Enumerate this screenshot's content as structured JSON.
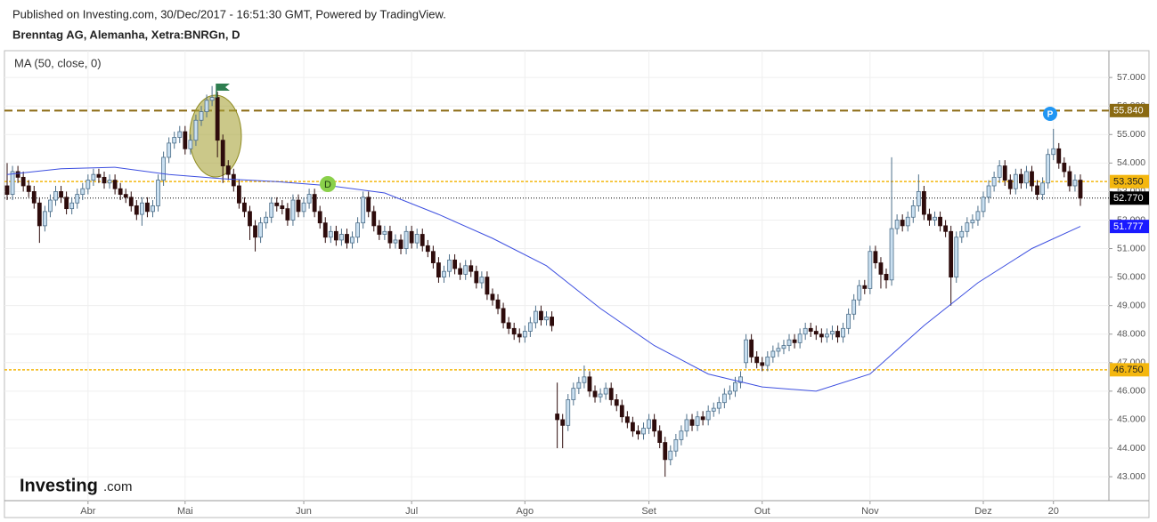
{
  "chart_data": {
    "type": "candlestick",
    "header": "Published on Investing.com, 30/Dec/2017 - 16:51:30 GMT, Powered by TradingView.",
    "title": "Brenntag AG, Alemanha, Xetra:BNRGn, D",
    "up_color": "#c9dff0",
    "down_color": "#2e0c0c",
    "grid": true,
    "ylim": [
      42.16,
      57.94
    ],
    "yticks": [
      {
        "value": 43,
        "label": "43.000"
      },
      {
        "value": 44,
        "label": "44.000"
      },
      {
        "value": 45,
        "label": "45.000"
      },
      {
        "value": 46,
        "label": "46.000"
      },
      {
        "value": 47,
        "label": "47.000"
      },
      {
        "value": 48,
        "label": "48.000"
      },
      {
        "value": 49,
        "label": "49.000"
      },
      {
        "value": 50,
        "label": "50.000"
      },
      {
        "value": 51,
        "label": "51.000"
      },
      {
        "value": 52,
        "label": "52.000"
      },
      {
        "value": 53,
        "label": "53.000"
      },
      {
        "value": 54,
        "label": "54.000"
      },
      {
        "value": 55,
        "label": "55.000"
      },
      {
        "value": 56,
        "label": "56.000"
      },
      {
        "value": 57,
        "label": "57.000"
      }
    ],
    "categories": [
      null,
      null,
      null,
      null,
      null,
      null,
      null,
      null,
      null,
      null,
      null,
      null,
      null,
      null,
      null,
      "Abr",
      null,
      null,
      null,
      null,
      null,
      null,
      null,
      null,
      null,
      null,
      null,
      null,
      null,
      null,
      null,
      null,
      null,
      "Mai",
      null,
      null,
      null,
      null,
      null,
      null,
      null,
      null,
      null,
      null,
      null,
      null,
      null,
      null,
      null,
      null,
      null,
      null,
      null,
      null,
      null,
      "Jun",
      null,
      null,
      null,
      null,
      null,
      null,
      null,
      null,
      null,
      null,
      null,
      null,
      null,
      null,
      null,
      null,
      null,
      null,
      null,
      "Jul",
      null,
      null,
      null,
      null,
      null,
      null,
      null,
      null,
      null,
      null,
      null,
      null,
      null,
      null,
      null,
      null,
      null,
      null,
      null,
      null,
      "Ago",
      null,
      null,
      null,
      null,
      null,
      null,
      null,
      null,
      null,
      null,
      null,
      null,
      null,
      null,
      null,
      null,
      null,
      null,
      null,
      null,
      null,
      null,
      "Set",
      null,
      null,
      null,
      null,
      null,
      null,
      null,
      null,
      null,
      null,
      null,
      null,
      null,
      null,
      null,
      null,
      null,
      null,
      null,
      null,
      "Out",
      null,
      null,
      null,
      null,
      null,
      null,
      null,
      null,
      null,
      null,
      null,
      null,
      null,
      null,
      null,
      null,
      null,
      null,
      null,
      "Nov",
      null,
      null,
      null,
      null,
      null,
      null,
      null,
      null,
      null,
      null,
      null,
      null,
      null,
      null,
      null,
      null,
      null,
      null,
      null,
      null,
      "Dez",
      null,
      null,
      null,
      null,
      null,
      null,
      null,
      null,
      null,
      null,
      null,
      null,
      "20",
      null,
      null,
      null,
      null,
      null
    ],
    "open": [
      53.2,
      52.9,
      53.7,
      53.5,
      53.2,
      53.0,
      52.6,
      51.8,
      52.3,
      52.7,
      53.0,
      52.8,
      52.4,
      52.6,
      52.9,
      53.1,
      53.4,
      53.6,
      53.5,
      53.3,
      53.4,
      53.1,
      52.9,
      52.8,
      52.5,
      52.2,
      52.6,
      52.3,
      52.5,
      53.4,
      54.2,
      54.7,
      54.9,
      55.1,
      54.5,
      54.8,
      55.5,
      55.8,
      56.2,
      56.3,
      54.8,
      53.9,
      53.6,
      53.2,
      52.6,
      52.3,
      51.8,
      51.4,
      51.9,
      52.1,
      52.6,
      52.5,
      52.4,
      52.0,
      52.7,
      52.3,
      52.6,
      52.9,
      52.3,
      51.9,
      51.4,
      51.6,
      51.3,
      51.5,
      51.2,
      51.4,
      51.9,
      52.8,
      52.3,
      51.8,
      51.5,
      51.6,
      51.2,
      51.3,
      51.0,
      51.6,
      51.2,
      51.5,
      51.1,
      50.9,
      50.5,
      50.0,
      50.2,
      50.6,
      50.3,
      50.1,
      50.4,
      50.2,
      49.8,
      50.0,
      49.4,
      49.2,
      48.9,
      48.4,
      48.2,
      48.0,
      47.9,
      48.1,
      48.4,
      48.8,
      48.5,
      48.6,
      45.2,
      45.0,
      44.8,
      45.7,
      46.1,
      46.3,
      46.5,
      46.0,
      45.8,
      45.9,
      46.1,
      45.7,
      45.5,
      45.1,
      44.9,
      44.6,
      44.5,
      44.7,
      45.0,
      44.6,
      44.2,
      43.6,
      43.9,
      44.3,
      44.6,
      45.0,
      44.8,
      45.1,
      45.0,
      45.3,
      45.4,
      45.6,
      45.9,
      46.0,
      46.3,
      47.0,
      47.8,
      47.2,
      47.0,
      46.9,
      47.2,
      47.4,
      47.5,
      47.6,
      47.8,
      47.7,
      48.0,
      48.2,
      48.1,
      48.0,
      47.9,
      48.0,
      48.1,
      47.9,
      48.2,
      48.7,
      49.2,
      49.7,
      49.6,
      50.9,
      50.5,
      50.1,
      49.9,
      51.7,
      52.0,
      51.8,
      52.1,
      52.5,
      53.0,
      52.2,
      52.0,
      52.1,
      51.8,
      51.6,
      50.0,
      51.4,
      51.6,
      51.9,
      52.0,
      52.3,
      52.8,
      53.2,
      53.5,
      53.9,
      53.4,
      53.1,
      53.6,
      53.3,
      53.7,
      53.2,
      52.9,
      53.3,
      54.3,
      54.5,
      54.0,
      53.7,
      53.2,
      53.4
    ],
    "high": [
      54.0,
      53.9,
      53.9,
      53.7,
      53.4,
      53.2,
      52.8,
      52.5,
      52.9,
      53.2,
      53.2,
      53.0,
      52.8,
      53.1,
      53.3,
      53.6,
      53.8,
      53.8,
      53.7,
      53.6,
      53.6,
      53.3,
      53.1,
      53.0,
      52.7,
      52.8,
      52.8,
      52.7,
      53.6,
      54.4,
      54.9,
      55.1,
      55.3,
      55.3,
      55.0,
      55.7,
      56.0,
      56.4,
      56.7,
      56.5,
      55.0,
      54.1,
      53.8,
      53.4,
      52.8,
      52.5,
      52.0,
      52.1,
      52.3,
      52.8,
      52.8,
      52.7,
      52.6,
      52.9,
      52.9,
      52.8,
      53.1,
      53.1,
      52.5,
      52.1,
      51.8,
      51.8,
      51.7,
      51.7,
      51.6,
      52.1,
      53.0,
      53.0,
      52.5,
      52.0,
      51.8,
      51.8,
      51.5,
      51.5,
      51.8,
      51.8,
      51.7,
      51.7,
      51.3,
      51.1,
      50.7,
      50.4,
      50.8,
      50.8,
      50.5,
      50.6,
      50.6,
      50.4,
      50.2,
      50.2,
      49.6,
      49.4,
      49.1,
      48.6,
      48.4,
      48.2,
      48.3,
      48.6,
      49.0,
      49.0,
      48.8,
      48.8,
      46.3,
      45.2,
      45.9,
      46.3,
      46.5,
      46.9,
      46.7,
      46.2,
      46.1,
      46.3,
      46.3,
      45.9,
      45.7,
      45.3,
      45.1,
      44.8,
      44.9,
      45.2,
      45.2,
      44.8,
      44.4,
      44.1,
      44.5,
      44.8,
      45.2,
      45.2,
      45.3,
      45.3,
      45.5,
      45.6,
      45.8,
      46.1,
      46.2,
      46.5,
      46.7,
      48.0,
      48.0,
      47.4,
      47.2,
      47.4,
      47.6,
      47.7,
      47.8,
      48.0,
      48.0,
      48.2,
      48.4,
      48.4,
      48.3,
      48.2,
      48.2,
      48.3,
      48.3,
      48.4,
      48.9,
      49.4,
      49.9,
      49.9,
      51.1,
      51.1,
      50.7,
      50.3,
      54.2,
      52.2,
      52.2,
      52.3,
      52.7,
      53.6,
      53.2,
      52.4,
      52.3,
      52.3,
      52.0,
      51.8,
      51.6,
      51.8,
      52.1,
      52.2,
      52.5,
      53.0,
      53.4,
      53.7,
      54.1,
      54.1,
      53.6,
      53.8,
      53.8,
      53.9,
      53.9,
      53.4,
      53.5,
      54.5,
      55.2,
      54.7,
      54.2,
      53.9,
      53.6,
      53.6
    ],
    "low": [
      52.7,
      52.7,
      53.3,
      53.0,
      52.8,
      52.4,
      51.2,
      51.6,
      52.1,
      52.5,
      52.6,
      52.2,
      52.2,
      52.4,
      52.7,
      52.9,
      53.2,
      53.3,
      53.1,
      53.1,
      52.9,
      52.7,
      52.6,
      52.3,
      52.0,
      51.8,
      52.1,
      52.1,
      52.3,
      53.2,
      54.0,
      54.5,
      54.7,
      54.3,
      54.3,
      54.6,
      55.3,
      55.6,
      56.0,
      54.2,
      53.3,
      53.4,
      53.0,
      52.4,
      52.1,
      51.3,
      50.9,
      51.2,
      51.7,
      51.9,
      52.3,
      52.2,
      51.8,
      51.8,
      52.1,
      52.1,
      52.4,
      52.1,
      51.7,
      51.2,
      51.2,
      51.1,
      51.1,
      51.0,
      51.0,
      51.2,
      51.7,
      52.1,
      51.6,
      51.3,
      51.3,
      51.0,
      51.0,
      50.8,
      50.8,
      51.0,
      51.0,
      50.9,
      50.7,
      50.3,
      49.8,
      49.8,
      50.0,
      50.1,
      49.9,
      49.9,
      50.0,
      49.6,
      49.6,
      49.2,
      49.0,
      48.7,
      48.2,
      48.0,
      47.8,
      47.7,
      47.7,
      47.9,
      48.2,
      48.3,
      48.3,
      48.1,
      44.0,
      44.0,
      44.6,
      45.5,
      45.9,
      46.1,
      45.8,
      45.6,
      45.6,
      45.7,
      45.5,
      45.3,
      44.9,
      44.7,
      44.4,
      44.3,
      44.3,
      44.5,
      44.4,
      44.0,
      43.0,
      43.4,
      43.7,
      44.1,
      44.4,
      44.6,
      44.6,
      44.8,
      44.8,
      45.1,
      45.2,
      45.4,
      45.7,
      45.8,
      46.1,
      46.8,
      47.0,
      46.8,
      46.7,
      46.7,
      47.0,
      47.2,
      47.3,
      47.4,
      47.5,
      47.5,
      47.8,
      47.9,
      47.8,
      47.7,
      47.7,
      47.8,
      47.7,
      47.7,
      48.0,
      48.5,
      49.0,
      49.4,
      49.4,
      50.3,
      49.6,
      49.6,
      49.7,
      51.5,
      51.6,
      51.6,
      51.9,
      52.3,
      52.0,
      51.8,
      51.8,
      51.6,
      51.4,
      49.0,
      49.8,
      51.2,
      51.4,
      51.7,
      51.8,
      52.1,
      52.6,
      53.0,
      53.3,
      53.2,
      52.9,
      52.9,
      53.1,
      53.1,
      53.0,
      52.7,
      52.7,
      53.1,
      54.1,
      53.8,
      53.5,
      53.0,
      53.0,
      52.5
    ],
    "close": [
      52.9,
      53.7,
      53.5,
      53.2,
      53.0,
      52.6,
      51.8,
      52.3,
      52.7,
      53.0,
      52.8,
      52.4,
      52.6,
      52.9,
      53.1,
      53.4,
      53.6,
      53.5,
      53.3,
      53.4,
      53.1,
      52.9,
      52.8,
      52.5,
      52.2,
      52.6,
      52.3,
      52.5,
      53.4,
      54.2,
      54.7,
      54.9,
      55.1,
      54.5,
      54.8,
      55.5,
      55.8,
      56.2,
      56.3,
      54.8,
      53.9,
      53.6,
      53.2,
      52.6,
      52.3,
      51.8,
      51.4,
      51.9,
      52.1,
      52.6,
      52.5,
      52.4,
      52.0,
      52.7,
      52.3,
      52.6,
      52.9,
      52.3,
      51.9,
      51.4,
      51.6,
      51.3,
      51.5,
      51.2,
      51.4,
      51.9,
      52.8,
      52.3,
      51.8,
      51.5,
      51.6,
      51.2,
      51.3,
      51.0,
      51.6,
      51.2,
      51.5,
      51.1,
      50.9,
      50.5,
      50.0,
      50.2,
      50.6,
      50.3,
      50.1,
      50.4,
      50.2,
      49.8,
      50.0,
      49.4,
      49.2,
      48.9,
      48.4,
      48.2,
      48.0,
      47.9,
      48.1,
      48.4,
      48.8,
      48.5,
      48.6,
      48.3,
      45.0,
      44.8,
      45.7,
      46.1,
      46.3,
      46.5,
      46.0,
      45.8,
      45.9,
      46.1,
      45.7,
      45.5,
      45.1,
      44.9,
      44.6,
      44.5,
      44.7,
      45.0,
      44.6,
      44.2,
      43.6,
      43.9,
      44.3,
      44.6,
      45.0,
      44.8,
      45.1,
      45.0,
      45.3,
      45.4,
      45.6,
      45.9,
      46.0,
      46.3,
      46.5,
      47.8,
      47.2,
      47.0,
      46.9,
      47.2,
      47.4,
      47.5,
      47.6,
      47.8,
      47.7,
      48.0,
      48.2,
      48.1,
      48.0,
      47.9,
      48.0,
      48.1,
      47.9,
      48.2,
      48.7,
      49.2,
      49.7,
      49.6,
      50.9,
      50.5,
      50.1,
      49.9,
      51.7,
      52.0,
      51.8,
      52.1,
      52.5,
      53.0,
      52.2,
      52.0,
      52.1,
      51.8,
      51.6,
      50.0,
      51.4,
      51.6,
      51.9,
      52.0,
      52.3,
      52.8,
      53.2,
      53.5,
      53.9,
      53.4,
      53.1,
      53.6,
      53.3,
      53.7,
      53.2,
      52.9,
      53.3,
      54.3,
      54.5,
      54.0,
      53.7,
      53.2,
      53.4,
      52.77
    ],
    "last_label": "52.770",
    "ma": {
      "name": "MA (50, close, 0)",
      "color": "#3d4fe0",
      "x": [
        0,
        10,
        20,
        30,
        40,
        50,
        60,
        70,
        80,
        90,
        100,
        110,
        120,
        130,
        140,
        150,
        160,
        170,
        180,
        190,
        199
      ],
      "values": [
        53.6,
        53.8,
        53.85,
        53.6,
        53.45,
        53.35,
        53.2,
        52.95,
        52.2,
        51.36,
        50.4,
        48.9,
        47.6,
        46.6,
        46.15,
        46.0,
        46.6,
        48.3,
        49.8,
        51.0,
        51.777
      ],
      "last_label": "51.777"
    },
    "levels": [
      {
        "value": 55.84,
        "label": "55.840",
        "color": "#8a6a12",
        "style": "dashed"
      },
      {
        "value": 53.35,
        "label": "53.350",
        "color": "#f4b70f",
        "style": "dotted"
      },
      {
        "value": 46.75,
        "label": "46.750",
        "color": "#f4b70f",
        "style": "dotted"
      }
    ],
    "annotations": [
      "D",
      "P"
    ],
    "logo": {
      "brand": "Investing",
      "suffix": ".com"
    }
  }
}
